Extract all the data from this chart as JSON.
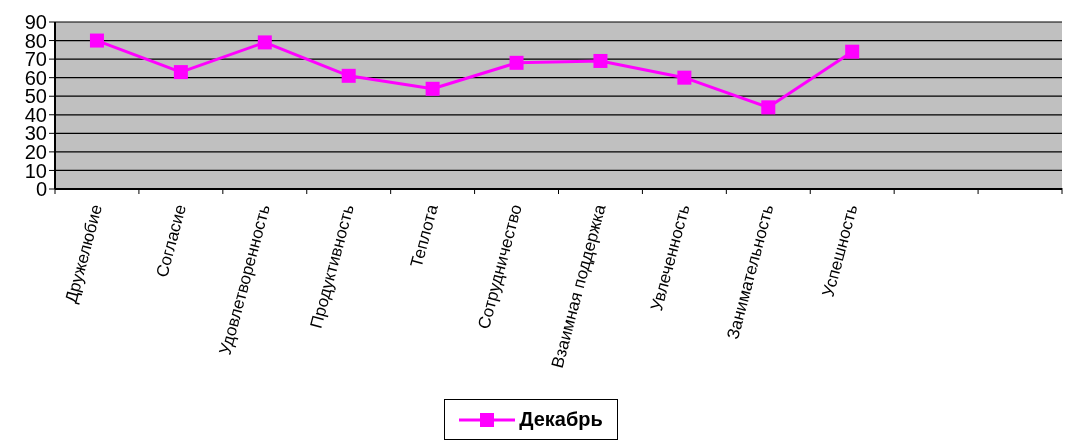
{
  "chart_data": {
    "type": "line",
    "categories": [
      "Дружелюбие",
      "Согласие",
      "Удовлетворенность",
      "Продуктивность",
      "Теплота",
      "Сотрудничество",
      "Взаимная поддержка",
      "Увлеченность",
      "Занимательность",
      "Успешность",
      null,
      null
    ],
    "series": [
      {
        "name": "Декабрь",
        "color": "#ff00ff",
        "values": [
          80,
          63,
          79,
          61,
          54,
          68,
          69,
          60,
          44,
          74,
          null,
          null
        ]
      }
    ],
    "ylim": [
      0,
      90
    ],
    "yticks": [
      0,
      10,
      20,
      30,
      40,
      50,
      60,
      70,
      80,
      90
    ],
    "grid": "y",
    "legend": "bottom",
    "marker": "square",
    "line_style": "solid"
  }
}
